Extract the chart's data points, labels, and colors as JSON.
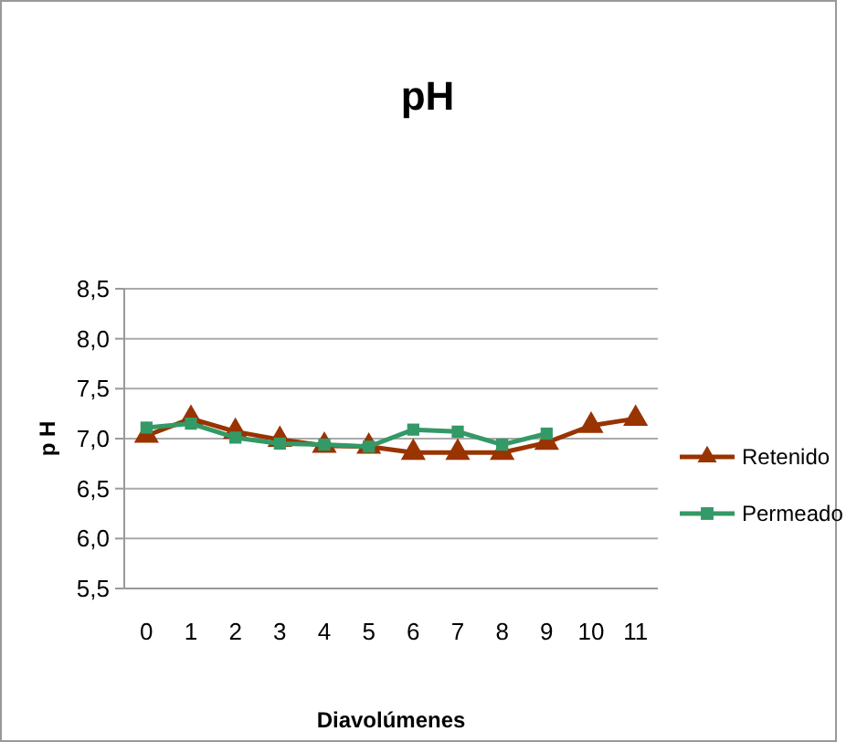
{
  "chart_data": {
    "type": "line",
    "title": "pH",
    "xlabel": "Diavolúmenes",
    "ylabel": "p H",
    "categories": [
      "0",
      "1",
      "2",
      "3",
      "4",
      "5",
      "6",
      "7",
      "8",
      "9",
      "10",
      "11"
    ],
    "series": [
      {
        "name": "Retenido",
        "color": "#993300",
        "marker": "triangle",
        "values": [
          7.03,
          7.2,
          7.07,
          6.99,
          6.93,
          6.92,
          6.86,
          6.86,
          6.86,
          6.96,
          7.13,
          7.2
        ]
      },
      {
        "name": "Permeado",
        "color": "#339966",
        "marker": "square",
        "values": [
          7.11,
          7.15,
          7.01,
          6.95,
          6.94,
          6.92,
          7.09,
          7.07,
          6.94,
          7.05,
          null,
          null
        ]
      }
    ],
    "ylim": [
      5.5,
      8.5
    ],
    "yticks": [
      {
        "value": 5.5,
        "label": "5,5"
      },
      {
        "value": 6,
        "label": "6,0"
      },
      {
        "value": 6.5,
        "label": "6,5"
      },
      {
        "value": 7,
        "label": "7,0"
      },
      {
        "value": 7.5,
        "label": "7,5"
      },
      {
        "value": 8,
        "label": "8,0"
      },
      {
        "value": 8.5,
        "label": "8,5"
      }
    ],
    "grid": "y",
    "legend": "right",
    "line_style": "solid"
  }
}
